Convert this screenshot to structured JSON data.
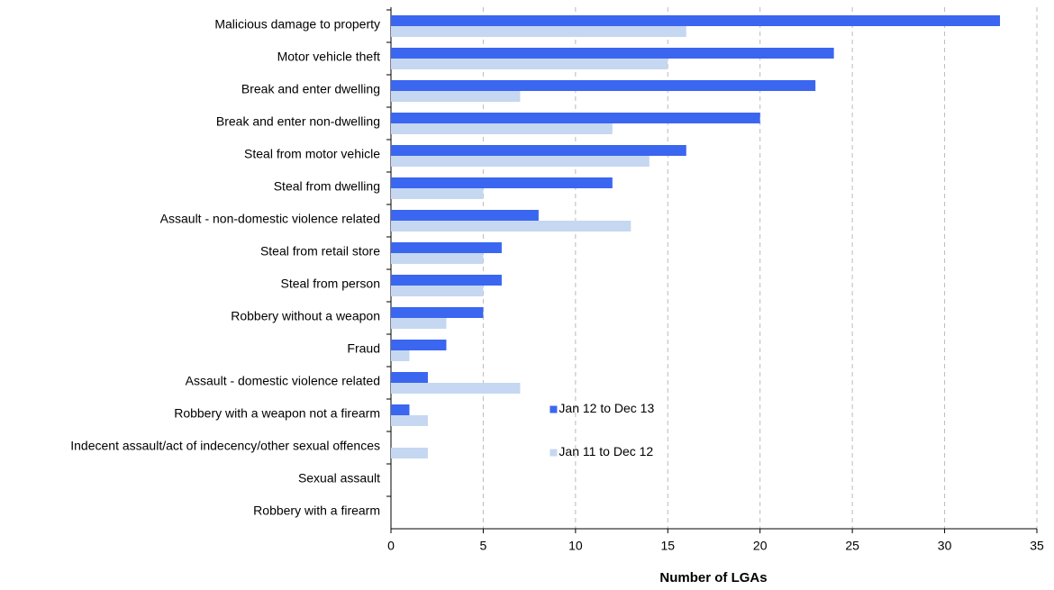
{
  "chart_data": {
    "type": "hbar",
    "xlabel": "Number of LGAs",
    "categories": [
      "Malicious damage to property",
      "Motor vehicle theft",
      "Break and enter dwelling",
      "Break and enter non-dwelling",
      "Steal from motor vehicle",
      "Steal from dwelling",
      "Assault - non-domestic violence related",
      "Steal from retail store",
      "Steal from person",
      "Robbery without a weapon",
      "Fraud",
      "Assault - domestic violence related",
      "Robbery with a weapon not a firearm",
      "Indecent assault/act of indecency/other sexual offences",
      "Sexual assault",
      "Robbery with a firearm"
    ],
    "series": [
      {
        "name": "Jan 12 to Dec 13",
        "color": "#3a66f0",
        "values": [
          33,
          24,
          23,
          20,
          16,
          12,
          8,
          6,
          6,
          5,
          3,
          2,
          1,
          0,
          0,
          0
        ]
      },
      {
        "name": "Jan 11 to Dec 12",
        "color": "#c6d7f1",
        "values": [
          16,
          15,
          7,
          12,
          14,
          5,
          13,
          5,
          5,
          3,
          1,
          7,
          2,
          2,
          0,
          0
        ]
      }
    ],
    "xlim": [
      0,
      35
    ],
    "xticks": [
      0,
      5,
      10,
      15,
      20,
      25,
      30,
      35
    ],
    "grid": true,
    "legend": "center"
  }
}
